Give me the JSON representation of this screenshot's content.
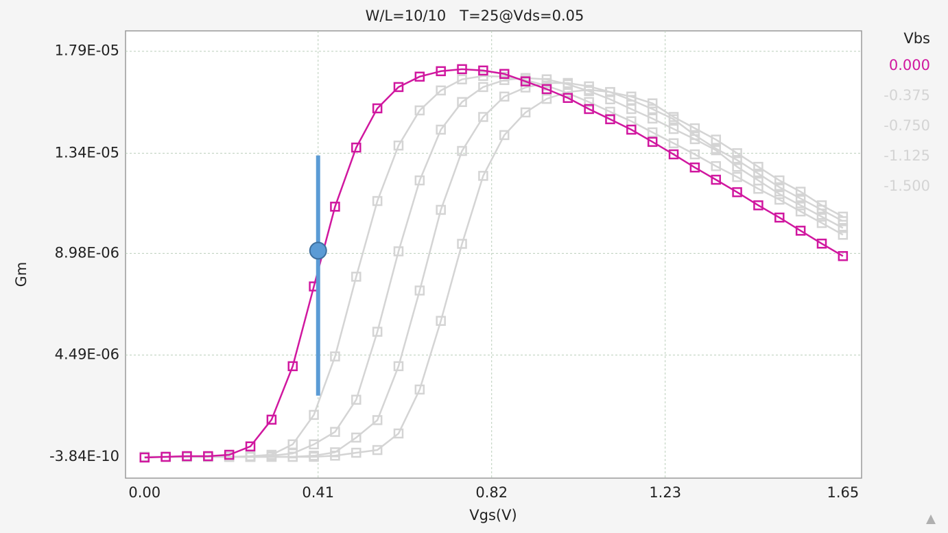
{
  "chart_data": {
    "type": "line",
    "title": "W/L=10/10   T=25@Vds=0.05",
    "x_label": "Vgs(V)",
    "y_label": "Gm",
    "legend_title": "Vbs",
    "legend": "right",
    "grid": true,
    "xlim": [
      -0.045,
      1.694
    ],
    "ylim": [
      -9.4e-07,
      1.88e-05
    ],
    "xticks": [
      {
        "value": 0,
        "label": "0.00"
      },
      0.41,
      0.82,
      1.23,
      1.65
    ],
    "yticks": [
      {
        "value": -3.84e-10,
        "label": "-3.84E-10"
      },
      {
        "value": 4.49e-06,
        "label": "4.49E-06"
      },
      {
        "value": 8.98e-06,
        "label": "8.98E-06"
      },
      {
        "value": 1.34e-05,
        "label": "1.34E-05"
      },
      {
        "value": 1.79e-05,
        "label": "1.79E-05"
      }
    ],
    "x": [
      0,
      0.05,
      0.1,
      0.15,
      0.2,
      0.25,
      0.3,
      0.35,
      0.4,
      0.45,
      0.5,
      0.55,
      0.6,
      0.65,
      0.7,
      0.75,
      0.8,
      0.85,
      0.9,
      0.95,
      1.0,
      1.05,
      1.1,
      1.15,
      1.2,
      1.25,
      1.3,
      1.35,
      1.4,
      1.45,
      1.5,
      1.55,
      1.6,
      1.65
    ],
    "series": [
      {
        "name": "0.000",
        "color": "#d0179f",
        "values": [
          -3e-08,
          0,
          3e-08,
          3e-08,
          9e-08,
          4.6e-07,
          1.64e-06,
          4e-06,
          7.52e-06,
          1.104e-05,
          1.365e-05,
          1.538e-05,
          1.632e-05,
          1.678e-05,
          1.702e-05,
          1.711e-05,
          1.705e-05,
          1.69e-05,
          1.657e-05,
          1.623e-05,
          1.584e-05,
          1.535e-05,
          1.49e-05,
          1.444e-05,
          1.39e-05,
          1.335e-05,
          1.277e-05,
          1.223e-05,
          1.168e-05,
          1.11e-05,
          1.056e-05,
          9.98e-06,
          9.41e-06,
          8.86e-06
        ]
      },
      {
        "name": "-0.375",
        "color": "#d4d4d4",
        "values": [
          0,
          0,
          0,
          0,
          0,
          3e-08,
          9e-08,
          5.5e-07,
          1.85e-06,
          4.43e-06,
          7.95e-06,
          1.129e-05,
          1.374e-05,
          1.529e-05,
          1.617e-05,
          1.666e-05,
          1.681e-05,
          1.678e-05,
          1.663e-05,
          1.638e-05,
          1.605e-05,
          1.566e-05,
          1.523e-05,
          1.481e-05,
          1.432e-05,
          1.384e-05,
          1.335e-05,
          1.283e-05,
          1.235e-05,
          1.183e-05,
          1.135e-05,
          1.083e-05,
          1.032e-05,
          9.8e-06
        ]
      },
      {
        "name": "-0.750",
        "color": "#d4d4d4",
        "values": [
          0,
          0,
          0,
          0,
          0,
          0,
          5e-08,
          1.5e-07,
          5.5e-07,
          1.1e-06,
          2.52e-06,
          5.52e-06,
          9.07e-06,
          1.22e-05,
          1.444e-05,
          1.566e-05,
          1.632e-05,
          1.663e-05,
          1.672e-05,
          1.666e-05,
          1.644e-05,
          1.614e-05,
          1.578e-05,
          1.535e-05,
          1.493e-05,
          1.447e-05,
          1.402e-05,
          1.353e-05,
          1.28e-05,
          1.22e-05,
          1.16e-05,
          1.11e-05,
          1.06e-05,
          1.01e-05
        ]
      },
      {
        "name": "-1.125",
        "color": "#d4d4d4",
        "values": [
          0,
          0,
          0,
          0,
          0,
          0,
          0,
          0,
          5e-08,
          2e-07,
          8.5e-07,
          1.62e-06,
          4e-06,
          7.34e-06,
          1.09e-05,
          1.35e-05,
          1.5e-05,
          1.59e-05,
          1.63e-05,
          1.65e-05,
          1.65e-05,
          1.635e-05,
          1.61e-05,
          1.575e-05,
          1.535e-05,
          1.49e-05,
          1.42e-05,
          1.36e-05,
          1.31e-05,
          1.25e-05,
          1.19e-05,
          1.14e-05,
          1.09e-05,
          1.04e-05
        ]
      },
      {
        "name": "-1.500",
        "color": "#d4d4d4",
        "values": [
          0,
          0,
          0,
          0,
          0,
          0,
          0,
          0,
          0,
          5e-08,
          1.8e-07,
          3e-07,
          1.03e-06,
          2.97e-06,
          6e-06,
          9.4e-06,
          1.24e-05,
          1.42e-05,
          1.52e-05,
          1.58e-05,
          1.61e-05,
          1.62e-05,
          1.61e-05,
          1.59e-05,
          1.56e-05,
          1.5e-05,
          1.45e-05,
          1.4e-05,
          1.34e-05,
          1.28e-05,
          1.22e-05,
          1.17e-05,
          1.11e-05,
          1.06e-05
        ]
      }
    ],
    "cursor": {
      "x": 0.41,
      "y": 9.1e-06,
      "yrange": [
        2.7e-06,
        1.33e-05
      ],
      "color": "#5b9bd5"
    }
  }
}
